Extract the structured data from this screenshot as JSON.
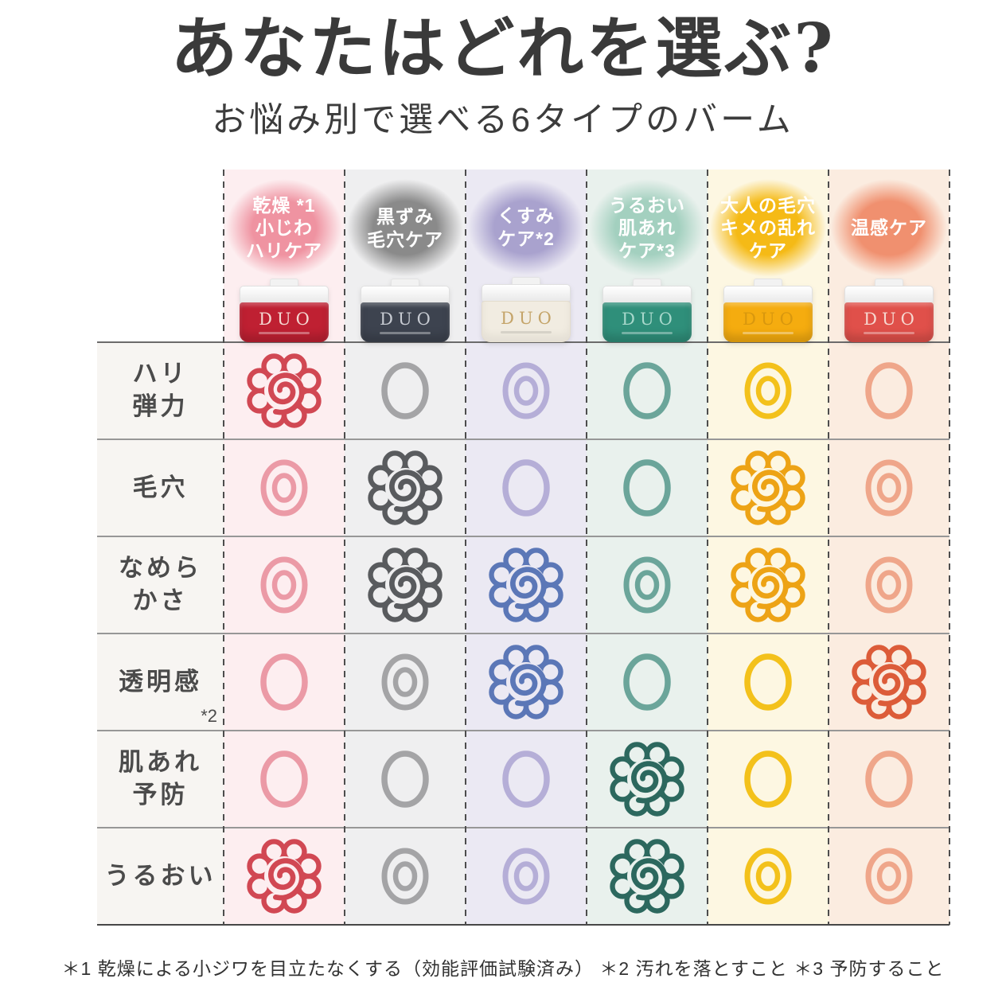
{
  "title": "あなたはどれを選ぶ?",
  "subtitle": "お悩み別で選べる6タイプのバーム",
  "footnote": "＊1 乾燥による小ジワを目立たなくする（効能評価試験済み） ＊2 汚れを落とすこと ＊3 予防すること",
  "columns": [
    {
      "badge_lines": [
        "乾燥 *1",
        "小じわ",
        "ハリケア"
      ],
      "badge_color": "#ef93a1",
      "tint": "#fdeef0",
      "jar": {
        "color": "#bf2032",
        "logo": "DUO",
        "logo_color": "#f4d8d2"
      },
      "flower_color": "#d14853",
      "ring_color": "#eb9aa6"
    },
    {
      "badge_lines": [
        "黒ずみ",
        "毛穴ケア"
      ],
      "badge_color": "#8a8a8a",
      "tint": "#efeff0",
      "jar": {
        "color": "#3d434f",
        "logo": "DUO",
        "logo_color": "#c7cbd2"
      },
      "flower_color": "#595b5e",
      "ring_color": "#a4a4a6"
    },
    {
      "badge_lines": [
        "くすみ",
        "ケア*2"
      ],
      "badge_color": "#a9a2ce",
      "tint": "#ebe9f3",
      "jar": {
        "color": "#f1ece1",
        "logo": "DUO",
        "logo_color": "#c4a469"
      },
      "flower_color": "#5b77b7",
      "ring_color": "#b5aed7"
    },
    {
      "badge_lines": [
        "うるおい",
        "肌あれ",
        "ケア*3"
      ],
      "badge_color": "#a3d0bf",
      "tint": "#e9f1ed",
      "jar": {
        "color": "#2f8f7a",
        "logo": "DUO",
        "logo_color": "#a8d8cb"
      },
      "flower_color": "#2c685e",
      "ring_color": "#6ba59a"
    },
    {
      "badge_lines": [
        "大人の毛穴",
        "キメの乱れ",
        "ケア"
      ],
      "badge_color": "#f5ba16",
      "tint": "#fdf7e2",
      "jar": {
        "color": "#f5ac0f",
        "logo": "DUO",
        "logo_color": "#d8970e"
      },
      "flower_color": "#eda315",
      "ring_color": "#f3c11b"
    },
    {
      "badge_lines": [
        "温感ケア"
      ],
      "badge_color": "#f0906f",
      "tint": "#fbece0",
      "jar": {
        "color": "#e0504a",
        "logo": "DUO",
        "logo_color": "#f6d8d0"
      },
      "flower_color": "#dc5c39",
      "ring_color": "#efa68a"
    }
  ],
  "rows": [
    {
      "label_lines": [
        "ハリ",
        "弾力"
      ],
      "note": ""
    },
    {
      "label_lines": [
        "毛穴"
      ],
      "note": ""
    },
    {
      "label_lines": [
        "なめら",
        "かさ"
      ],
      "note": ""
    },
    {
      "label_lines": [
        "透明感"
      ],
      "note": "*2"
    },
    {
      "label_lines": [
        "肌あれ",
        "予防"
      ],
      "note": ""
    },
    {
      "label_lines": [
        "うるおい"
      ],
      "note": ""
    }
  ],
  "chart_data": {
    "type": "table",
    "title": "あなたはどれを選ぶ?",
    "subtitle": "お悩み別で選べる6タイプのバーム",
    "columns": [
      "乾燥・小じわ・ハリケア *1",
      "黒ずみ・毛穴ケア",
      "くすみケア *2",
      "うるおい・肌あれケア *3",
      "大人の毛穴・キメの乱れケア",
      "温感ケア"
    ],
    "rows": [
      "ハリ弾力",
      "毛穴",
      "なめらかさ",
      "透明感 *2",
      "肌あれ予防",
      "うるおい"
    ],
    "values": [
      [
        "flower",
        "circle",
        "double",
        "circle",
        "double",
        "circle"
      ],
      [
        "double",
        "flower",
        "circle",
        "circle",
        "flower",
        "double"
      ],
      [
        "double",
        "flower",
        "flower",
        "double",
        "flower",
        "double"
      ],
      [
        "circle",
        "double",
        "flower",
        "circle",
        "circle",
        "flower"
      ],
      [
        "circle",
        "circle",
        "circle",
        "flower",
        "circle",
        "circle"
      ],
      [
        "flower",
        "double",
        "double",
        "flower",
        "double",
        "double"
      ]
    ],
    "legend_position": "none",
    "grid": "rows: solid gray lines, columns: dashed gray lines"
  }
}
